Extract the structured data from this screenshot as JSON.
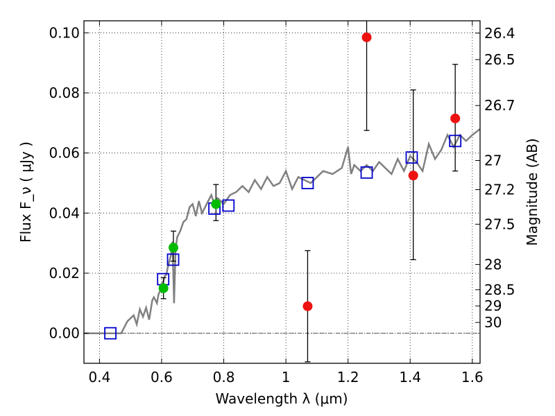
{
  "chart_data": {
    "type": "scatter",
    "xlabel": "Wavelength  λ (μm)",
    "ylabel": "Flux  F_ν  ( μJy )",
    "ylabel_right": "Magnitude (AB)",
    "xlim": [
      0.35,
      1.625
    ],
    "ylim": [
      -0.01,
      0.104
    ],
    "grid": true,
    "x_ticks": [
      0.4,
      0.6,
      0.8,
      1.0,
      1.2,
      1.4,
      1.6
    ],
    "x_tick_labels": [
      "0.4",
      "0.6",
      "0.8",
      "1",
      "1.2",
      "1.4",
      "1.6"
    ],
    "y_ticks": [
      0.0,
      0.02,
      0.04,
      0.06,
      0.08,
      0.1
    ],
    "y_tick_labels": [
      "0.00",
      "0.02",
      "0.04",
      "0.06",
      "0.08",
      "0.10"
    ],
    "right_ticks": [
      {
        "flux": 0.0999,
        "label": "26.4"
      },
      {
        "flux": 0.0911,
        "label": "26.5"
      },
      {
        "flux": 0.0758,
        "label": "26.7"
      },
      {
        "flux": 0.0575,
        "label": "27"
      },
      {
        "flux": 0.0478,
        "label": "27.2"
      },
      {
        "flux": 0.0363,
        "label": "27.5"
      },
      {
        "flux": 0.0229,
        "label": "28"
      },
      {
        "flux": 0.0145,
        "label": "28.5"
      },
      {
        "flux": 0.0091,
        "label": "29"
      },
      {
        "flux": 0.0036,
        "label": "30"
      }
    ],
    "colors": {
      "model": "#808080",
      "square": "#0000cc",
      "green": "#00bb00",
      "red": "#ee1111",
      "errorbar": "#000000",
      "zero_line": "#555555"
    },
    "series": [
      {
        "kind": "model_spectrum",
        "x": [
          0.35,
          0.47,
          0.49,
          0.51,
          0.52,
          0.53,
          0.54,
          0.55,
          0.56,
          0.57,
          0.575,
          0.585,
          0.59,
          0.595,
          0.6,
          0.605,
          0.61,
          0.615,
          0.62,
          0.625,
          0.63,
          0.635,
          0.64,
          0.645,
          0.65,
          0.66,
          0.67,
          0.68,
          0.69,
          0.7,
          0.71,
          0.72,
          0.73,
          0.74,
          0.75,
          0.76,
          0.77,
          0.78,
          0.8,
          0.82,
          0.84,
          0.86,
          0.88,
          0.9,
          0.92,
          0.94,
          0.96,
          0.98,
          1.0,
          1.02,
          1.04,
          1.06,
          1.08,
          1.1,
          1.12,
          1.15,
          1.18,
          1.2,
          1.21,
          1.22,
          1.24,
          1.26,
          1.28,
          1.3,
          1.32,
          1.34,
          1.36,
          1.38,
          1.4,
          1.42,
          1.44,
          1.46,
          1.48,
          1.5,
          1.52,
          1.54,
          1.56,
          1.58,
          1.6,
          1.625
        ],
        "y": [
          0.0,
          0.0,
          0.004,
          0.006,
          0.003,
          0.008,
          0.0055,
          0.0085,
          0.0045,
          0.011,
          0.012,
          0.01,
          0.013,
          0.014,
          0.0165,
          0.017,
          0.019,
          0.0195,
          0.022,
          0.024,
          0.026,
          0.0305,
          0.01,
          0.028,
          0.032,
          0.034,
          0.037,
          0.038,
          0.042,
          0.043,
          0.039,
          0.044,
          0.04,
          0.042,
          0.044,
          0.046,
          0.043,
          0.045,
          0.043,
          0.046,
          0.047,
          0.049,
          0.047,
          0.051,
          0.048,
          0.052,
          0.049,
          0.05,
          0.054,
          0.048,
          0.052,
          0.051,
          0.05,
          0.052,
          0.054,
          0.053,
          0.055,
          0.062,
          0.053,
          0.056,
          0.054,
          0.056,
          0.054,
          0.057,
          0.055,
          0.053,
          0.058,
          0.054,
          0.059,
          0.057,
          0.054,
          0.063,
          0.058,
          0.061,
          0.066,
          0.062,
          0.066,
          0.064,
          0.066,
          0.068
        ]
      },
      {
        "kind": "model_squares",
        "x": [
          0.435,
          0.605,
          0.637,
          0.77,
          0.815,
          1.07,
          1.26,
          1.405,
          1.545
        ],
        "y": [
          0.0,
          0.018,
          0.0245,
          0.0415,
          0.0425,
          0.05,
          0.0535,
          0.0585,
          0.064
        ]
      },
      {
        "kind": "green_points",
        "x": [
          0.606,
          0.638,
          0.775
        ],
        "y": [
          0.015,
          0.0285,
          0.043
        ],
        "yerr_low": [
          0.0035,
          0.0045,
          0.0055
        ],
        "yerr_high": [
          0.0035,
          0.0055,
          0.0065
        ]
      },
      {
        "kind": "red_points",
        "x": [
          1.07,
          1.26,
          1.41,
          1.545
        ],
        "y": [
          0.009,
          0.0985,
          0.0525,
          0.0715
        ],
        "yerr_low": [
          0.0185,
          0.031,
          0.028,
          0.0175
        ],
        "yerr_high": [
          0.0185,
          0.006,
          0.0285,
          0.018
        ]
      }
    ]
  }
}
